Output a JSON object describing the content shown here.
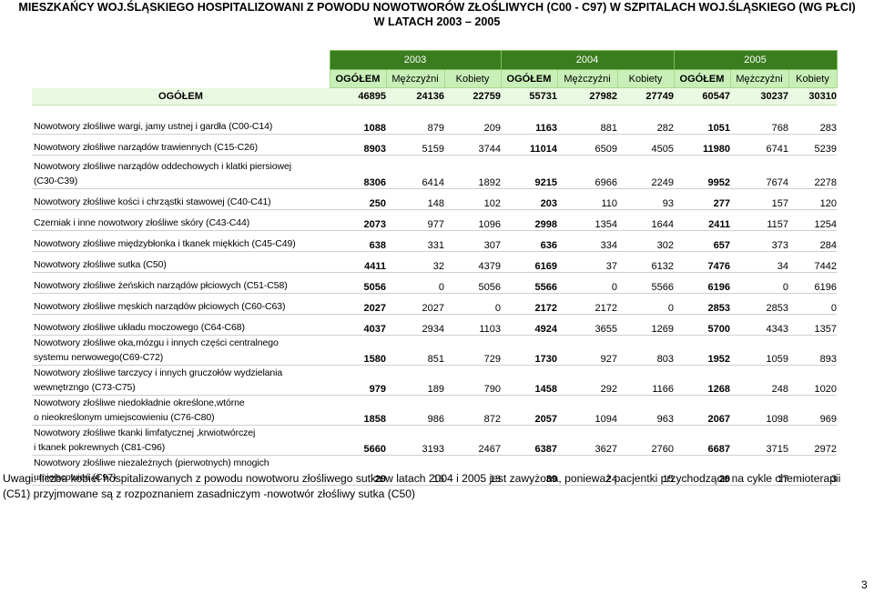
{
  "title": {
    "line1": "MIESZKAŃCY WOJ.ŚLĄSKIEGO HOSPITALIZOWANI Z POWODU NOWOTWORÓW ZŁOŚLIWYCH (C00 - C97) W SZPITALACH WOJ.ŚLĄSKIEGO (WG PŁCI)",
    "line2": "W LATACH 2003 – 2005"
  },
  "years": [
    "2003",
    "2004",
    "2005"
  ],
  "columns": [
    "OGÓŁEM",
    "Mężczyźni",
    "Kobiety",
    "OGÓŁEM",
    "Mężczyźni",
    "Kobiety",
    "OGÓŁEM",
    "Mężczyźni",
    "Kobiety"
  ],
  "total": {
    "label": "OGÓŁEM",
    "values": [
      "46895",
      "24136",
      "22759",
      "55731",
      "27982",
      "27749",
      "60547",
      "30237",
      "30310"
    ]
  },
  "rows": [
    {
      "l1": "Nowotwory złośliwe wargi, jamy ustnej i gardła (C00-C14)",
      "l2": "",
      "v": [
        "1088",
        "879",
        "209",
        "1163",
        "881",
        "282",
        "1051",
        "768",
        "283"
      ]
    },
    {
      "l1": "Nowotwory złośliwe narządów trawiennych (C15-C26)",
      "l2": "",
      "v": [
        "8903",
        "5159",
        "3744",
        "11014",
        "6509",
        "4505",
        "11980",
        "6741",
        "5239"
      ]
    },
    {
      "l1": "Nowotwory złośliwe narządów oddechowych  i klatki piersiowej",
      "l2": "(C30-C39)",
      "v": [
        "8306",
        "6414",
        "1892",
        "9215",
        "6966",
        "2249",
        "9952",
        "7674",
        "2278"
      ]
    },
    {
      "l1": "Nowotwory złośliwe kości i chrząstki stawowej (C40-C41)",
      "l2": "",
      "v": [
        "250",
        "148",
        "102",
        "203",
        "110",
        "93",
        "277",
        "157",
        "120"
      ]
    },
    {
      "l1": "Czerniak i inne nowotwory złośliwe skóry (C43-C44)",
      "l2": "",
      "v": [
        "2073",
        "977",
        "1096",
        "2998",
        "1354",
        "1644",
        "2411",
        "1157",
        "1254"
      ]
    },
    {
      "l1": "Nowotwory złośliwe międzybłonka i tkanek miękkich (C45-C49)",
      "l2": "",
      "v": [
        "638",
        "331",
        "307",
        "636",
        "334",
        "302",
        "657",
        "373",
        "284"
      ]
    },
    {
      "l1": "Nowotwory złośliwe sutka (C50)",
      "l2": "",
      "v": [
        "4411",
        "32",
        "4379",
        "6169",
        "37",
        "6132",
        "7476",
        "34",
        "7442"
      ]
    },
    {
      "l1": "Nowotwory złośliwe żeńskich narządów płciowych (C51-C58)",
      "l2": "",
      "v": [
        "5056",
        "0",
        "5056",
        "5566",
        "0",
        "5566",
        "6196",
        "0",
        "6196"
      ]
    },
    {
      "l1": "Nowotwory złośliwe męskich narządów płciowych (C60-C63)",
      "l2": "",
      "v": [
        "2027",
        "2027",
        "0",
        "2172",
        "2172",
        "0",
        "2853",
        "2853",
        "0"
      ]
    },
    {
      "l1": "Nowotwory złośliwe układu moczowego (C64-C68)",
      "l2": "",
      "v": [
        "4037",
        "2934",
        "1103",
        "4924",
        "3655",
        "1269",
        "5700",
        "4343",
        "1357"
      ]
    },
    {
      "l1": "Nowotwory złośliwe oka,mózgu i innych części centralnego",
      "l2": "systemu nerwowego(C69-C72)",
      "v": [
        "1580",
        "851",
        "729",
        "1730",
        "927",
        "803",
        "1952",
        "1059",
        "893"
      ]
    },
    {
      "l1": "Nowotwory złośliwe tarczycy i innych gruczołów wydzielania",
      "l2": "wewnętrzngo (C73-C75)",
      "v": [
        "979",
        "189",
        "790",
        "1458",
        "292",
        "1166",
        "1268",
        "248",
        "1020"
      ]
    },
    {
      "l1": "Nowotwory złośliwe niedokładnie określone,wtórne",
      "l2": "o nieokreślonym umiejscowieniu (C76-C80)",
      "v": [
        "1858",
        "986",
        "872",
        "2057",
        "1094",
        "963",
        "2067",
        "1098",
        "969"
      ]
    },
    {
      "l1": "Nowotwory złośliwe tkanki limfatycznej ,krwiotwórczej",
      "l2": "i  tkanek pokrewnych (C81-C96)",
      "v": [
        "5660",
        "3193",
        "2467",
        "6387",
        "3627",
        "2760",
        "6687",
        "3715",
        "2972"
      ]
    },
    {
      "l1": "Nowotwory złośliwe niezależnych (pierwotnych) mnogich",
      "l2": "umiejscowień (C97)",
      "v": [
        "29",
        "16",
        "13",
        "39",
        "24",
        "15",
        "20",
        "17",
        "3"
      ]
    }
  ],
  "note": {
    "line1": "Uwagi: liczba kobiet hospitalizowanych z powodu nowotworu złośliwego sutka w latach 2004 i 2005 jest zawyżona, ponieważ pacjentki przychodzące na cykle chemioterapii",
    "line2": "(C51) przyjmowane są z rozpoznaniem zasadniczym -nowotwór złośliwy sutka (C50)"
  },
  "page_number": "3"
}
